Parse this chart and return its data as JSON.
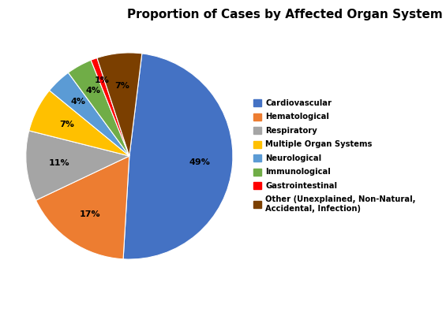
{
  "title": "Proportion of Cases by Affected Organ System",
  "values": [
    49,
    17,
    11,
    7,
    4,
    4,
    1,
    7
  ],
  "colors": [
    "#4472C4",
    "#ED7D31",
    "#A5A5A5",
    "#FFC000",
    "#5B9BD5",
    "#70AD47",
    "#FF0000",
    "#7B3F00"
  ],
  "pct_labels": [
    "49%",
    "17%",
    "11%",
    "7%",
    "4%",
    "4%",
    "1%",
    "7%"
  ],
  "legend_labels": [
    "Cardiovascular",
    "Hematological",
    "Respiratory",
    "Multiple Organ Systems",
    "Neurological",
    "Immunological",
    "Gastrointestinal",
    "Other (Unexplained, Non-Natural,\nAccidental, Infection)"
  ],
  "title_fontsize": 11,
  "startangle": 83
}
